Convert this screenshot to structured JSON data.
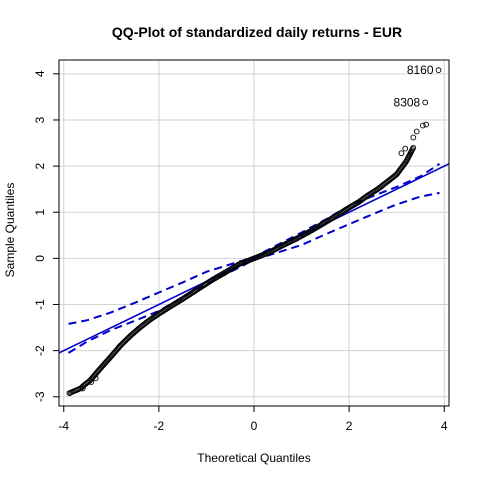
{
  "chart_data": {
    "type": "scatter",
    "title": "QQ-Plot of standardized daily returns - EUR",
    "xlabel": "Theoretical Quantiles",
    "ylabel": "Sample Quantiles",
    "xlim": [
      -4.1,
      4.1
    ],
    "ylim": [
      -3.2,
      4.3
    ],
    "xticks": [
      -4,
      -2,
      0,
      2,
      4
    ],
    "xtick_labels": [
      "-4",
      "-2",
      "0",
      "2",
      "4"
    ],
    "yticks": [
      -3,
      -2,
      -1,
      0,
      1,
      2,
      3,
      4
    ],
    "ytick_labels": [
      "-3",
      "-2",
      "-1",
      "0",
      "1",
      "2",
      "3",
      "4"
    ],
    "grid": true,
    "colors": {
      "points": "#000000",
      "reference": "#0000cc",
      "grid": "#d3d3d3"
    },
    "reference_line": {
      "intercept": 0.0,
      "slope": 0.5
    },
    "envelope": {
      "x": [
        -3.9,
        -3.5,
        -3.0,
        -2.5,
        -2.0,
        -1.5,
        -1.0,
        0.0,
        1.0,
        1.5,
        2.0,
        2.5,
        3.0,
        3.5,
        3.9
      ],
      "upper": [
        -1.42,
        -1.34,
        -1.17,
        -0.96,
        -0.74,
        -0.52,
        -0.29,
        0.03,
        0.56,
        0.84,
        1.14,
        1.35,
        1.55,
        1.78,
        2.05
      ],
      "lower": [
        -2.05,
        -1.8,
        -1.55,
        -1.35,
        -1.14,
        -0.84,
        -0.56,
        -0.03,
        0.29,
        0.52,
        0.74,
        0.96,
        1.17,
        1.34,
        1.42
      ]
    },
    "quantile_curve": [
      [
        -3.88,
        -2.92
      ],
      [
        -3.65,
        -2.82
      ],
      [
        -3.55,
        -2.73
      ],
      [
        -3.45,
        -2.65
      ],
      [
        -3.2,
        -2.35
      ],
      [
        -3.0,
        -2.12
      ],
      [
        -2.8,
        -1.88
      ],
      [
        -2.6,
        -1.68
      ],
      [
        -2.4,
        -1.5
      ],
      [
        -2.2,
        -1.34
      ],
      [
        -2.0,
        -1.2
      ],
      [
        -1.8,
        -1.07
      ],
      [
        -1.5,
        -0.88
      ],
      [
        -1.2,
        -0.68
      ],
      [
        -0.9,
        -0.48
      ],
      [
        -0.6,
        -0.3
      ],
      [
        -0.3,
        -0.12
      ],
      [
        0.0,
        0.0
      ],
      [
        0.3,
        0.12
      ],
      [
        0.6,
        0.28
      ],
      [
        0.9,
        0.43
      ],
      [
        1.2,
        0.6
      ],
      [
        1.5,
        0.78
      ],
      [
        1.8,
        0.97
      ],
      [
        2.0,
        1.1
      ],
      [
        2.2,
        1.22
      ],
      [
        2.4,
        1.37
      ],
      [
        2.6,
        1.5
      ],
      [
        2.8,
        1.66
      ],
      [
        3.0,
        1.82
      ],
      [
        3.2,
        2.1
      ],
      [
        3.35,
        2.4
      ]
    ],
    "outliers": [
      {
        "x": -3.88,
        "y": -2.92
      },
      {
        "x": -3.6,
        "y": -2.82
      },
      {
        "x": -3.42,
        "y": -2.68
      },
      {
        "x": -3.33,
        "y": -2.6
      },
      {
        "x": 3.1,
        "y": 2.28
      },
      {
        "x": 3.18,
        "y": 2.38
      },
      {
        "x": 3.35,
        "y": 2.62
      },
      {
        "x": 3.42,
        "y": 2.75
      },
      {
        "x": 3.55,
        "y": 2.88
      },
      {
        "x": 3.62,
        "y": 2.9
      },
      {
        "x": 3.6,
        "y": 3.38,
        "label": "8308"
      },
      {
        "x": 3.88,
        "y": 4.08,
        "label": "8160"
      }
    ]
  }
}
